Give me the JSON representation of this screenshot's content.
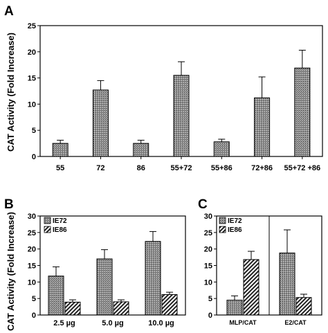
{
  "chart_data": [
    {
      "panel": "A",
      "type": "bar",
      "ylabel": "CAT Activity (Fold Increase)",
      "ylim": [
        0,
        25
      ],
      "yticks": [
        0,
        5,
        10,
        15,
        20,
        25
      ],
      "categories": [
        "55",
        "72",
        "86",
        "55+72",
        "55+86",
        "72+86",
        "55+72 +86"
      ],
      "values": [
        2.5,
        12.7,
        2.5,
        15.5,
        2.8,
        11.2,
        16.9
      ],
      "errors": [
        0.6,
        1.8,
        0.6,
        2.6,
        0.5,
        4.0,
        3.4
      ],
      "grid": false
    },
    {
      "panel": "B",
      "type": "bar",
      "ylabel": "CAT Activity (Fold Increase)",
      "ylim": [
        0,
        30
      ],
      "yticks": [
        0,
        5,
        10,
        15,
        20,
        25,
        30
      ],
      "categories": [
        "2.5 µg",
        "5.0 µg",
        "10.0 µg"
      ],
      "series": [
        {
          "name": "IE72",
          "values": [
            11.8,
            17.0,
            22.3
          ],
          "errors": [
            2.8,
            2.8,
            3.0
          ]
        },
        {
          "name": "IE86",
          "values": [
            3.9,
            4.0,
            6.2
          ],
          "errors": [
            0.7,
            0.6,
            0.7
          ]
        }
      ],
      "legend": "top-left",
      "grid": false
    },
    {
      "panel": "C",
      "type": "bar",
      "ylim": [
        0,
        30
      ],
      "yticks": [
        0,
        5,
        10,
        15,
        20,
        25,
        30
      ],
      "categories": [
        "MLP/CAT",
        "E2/CAT"
      ],
      "series": [
        {
          "name": "IE72",
          "values": [
            4.5,
            18.8
          ],
          "errors": [
            1.3,
            7.0
          ]
        },
        {
          "name": "IE86",
          "values": [
            16.8,
            5.3
          ],
          "errors": [
            2.5,
            1.0
          ]
        }
      ],
      "legend": "top-left",
      "grid": false
    }
  ],
  "colors": {
    "ie72_fill": "#8a8a8a",
    "ie86_hatch": "#222222",
    "axis": "#000000"
  }
}
